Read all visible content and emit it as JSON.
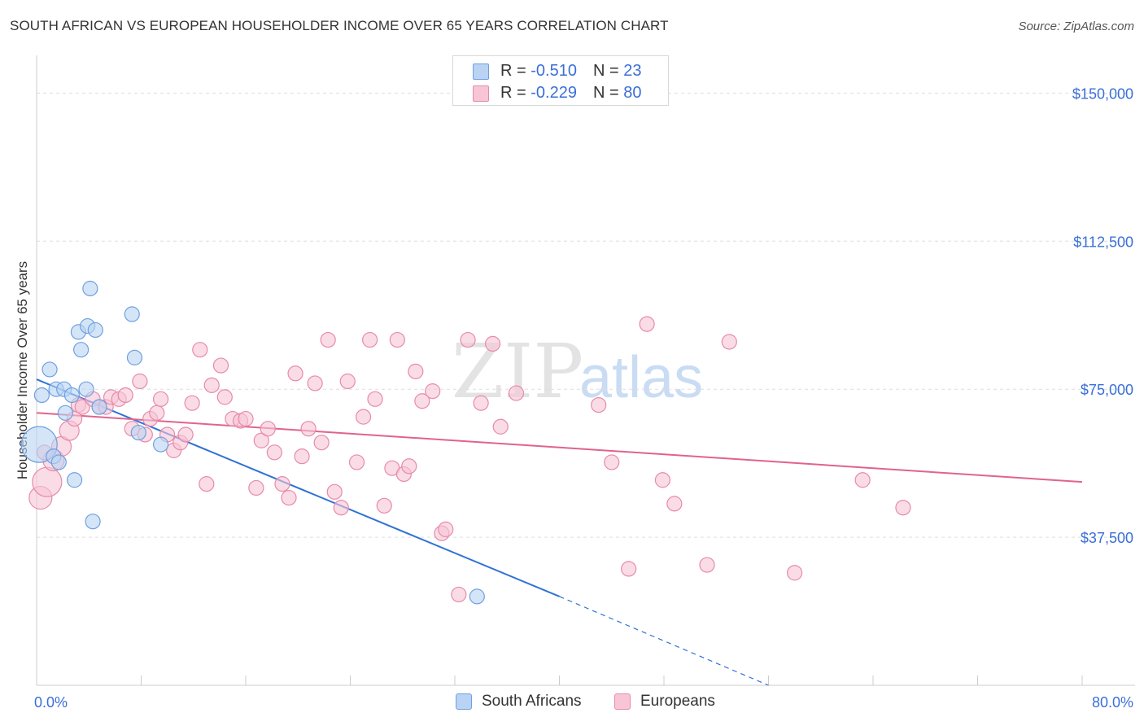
{
  "header": {
    "title": "SOUTH AFRICAN VS EUROPEAN HOUSEHOLDER INCOME OVER 65 YEARS CORRELATION CHART",
    "source": "Source: ZipAtlas.com"
  },
  "watermark": {
    "zip": "ZIP",
    "atlas": "atlas"
  },
  "colors": {
    "blue": "#6fa0e0",
    "blue_fill": "#b9d3f4",
    "blue_line": "#2f72d6",
    "pink": "#e88aa8",
    "pink_fill": "#f7c5d5",
    "pink_line": "#e0638e",
    "axis_text": "#3a6fd8",
    "grid": "#dddddd"
  },
  "legend_top": {
    "rows": [
      {
        "r_label": "R =",
        "r_value": "-0.510",
        "n_label": "N =",
        "n_value": "23",
        "series": "blue"
      },
      {
        "r_label": "R =",
        "r_value": "-0.229",
        "n_label": "N =",
        "n_value": "80",
        "series": "pink"
      }
    ]
  },
  "legend_bottom": {
    "items": [
      "South Africans",
      "Europeans"
    ]
  },
  "chart_data": {
    "type": "scatter",
    "title": "SOUTH AFRICAN VS EUROPEAN HOUSEHOLDER INCOME OVER 65 YEARS CORRELATION CHART",
    "xlabel": "",
    "ylabel": "Householder Income Over 65 years",
    "xlim": [
      0,
      80
    ],
    "ylim": [
      0,
      157500
    ],
    "x_tick_labels": [
      "0.0%",
      "80.0%"
    ],
    "y_ticks": [
      37500,
      75000,
      112500,
      150000
    ],
    "y_tick_labels": [
      "$37,500",
      "$75,000",
      "$112,500",
      "$150,000"
    ],
    "series": [
      {
        "name": "South Africans",
        "color": "blue",
        "points": [
          [
            0.2,
            61000,
            22
          ],
          [
            0.4,
            73500,
            9
          ],
          [
            1.0,
            80000,
            9
          ],
          [
            1.3,
            58000,
            9
          ],
          [
            1.5,
            75000,
            9
          ],
          [
            1.7,
            56500,
            9
          ],
          [
            2.1,
            75000,
            9
          ],
          [
            2.2,
            69000,
            9
          ],
          [
            2.7,
            73500,
            9
          ],
          [
            2.9,
            52000,
            9
          ],
          [
            3.2,
            89500,
            9
          ],
          [
            3.4,
            85000,
            9
          ],
          [
            3.8,
            75000,
            9
          ],
          [
            3.9,
            91000,
            9
          ],
          [
            4.1,
            100500,
            9
          ],
          [
            4.3,
            41500,
            9
          ],
          [
            4.5,
            90000,
            9
          ],
          [
            4.8,
            70500,
            9
          ],
          [
            7.3,
            94000,
            9
          ],
          [
            7.5,
            83000,
            9
          ],
          [
            7.8,
            64000,
            9
          ],
          [
            9.5,
            61000,
            9
          ],
          [
            33.7,
            22500,
            9
          ]
        ],
        "trend": {
          "x0": 0,
          "y0": 77500,
          "x1": 40,
          "y1": 22500,
          "dashed_to_x": 56,
          "dashed_to_y": 0
        }
      },
      {
        "name": "Europeans",
        "color": "pink",
        "points": [
          [
            0.3,
            47500,
            14
          ],
          [
            0.8,
            51500,
            18
          ],
          [
            1.3,
            57000,
            13
          ],
          [
            1.9,
            60500,
            12
          ],
          [
            2.5,
            64500,
            12
          ],
          [
            2.9,
            67500,
            9
          ],
          [
            3.2,
            71000,
            9
          ],
          [
            3.5,
            70500,
            9
          ],
          [
            4.3,
            72500,
            9
          ],
          [
            4.8,
            70500,
            9
          ],
          [
            5.3,
            70500,
            9
          ],
          [
            5.7,
            73000,
            9
          ],
          [
            6.3,
            72500,
            9
          ],
          [
            6.8,
            73500,
            9
          ],
          [
            7.3,
            65000,
            9
          ],
          [
            7.9,
            77000,
            9
          ],
          [
            8.3,
            63500,
            9
          ],
          [
            8.7,
            67500,
            9
          ],
          [
            9.2,
            69000,
            9
          ],
          [
            9.5,
            72500,
            9
          ],
          [
            10.0,
            63500,
            9
          ],
          [
            10.5,
            59500,
            9
          ],
          [
            11.0,
            61500,
            9
          ],
          [
            11.4,
            63500,
            9
          ],
          [
            11.9,
            71500,
            9
          ],
          [
            12.5,
            85000,
            9
          ],
          [
            13.0,
            51000,
            9
          ],
          [
            13.4,
            76000,
            9
          ],
          [
            14.1,
            81000,
            9
          ],
          [
            14.4,
            73000,
            9
          ],
          [
            15.0,
            67500,
            9
          ],
          [
            15.6,
            67000,
            9
          ],
          [
            16.0,
            67500,
            9
          ],
          [
            16.8,
            50000,
            9
          ],
          [
            17.2,
            62000,
            9
          ],
          [
            17.7,
            65000,
            9
          ],
          [
            18.2,
            59000,
            9
          ],
          [
            18.8,
            51000,
            9
          ],
          [
            19.3,
            47500,
            9
          ],
          [
            19.8,
            79000,
            9
          ],
          [
            20.3,
            58000,
            9
          ],
          [
            20.8,
            65000,
            9
          ],
          [
            21.3,
            76500,
            9
          ],
          [
            21.8,
            61500,
            9
          ],
          [
            22.3,
            87500,
            9
          ],
          [
            22.8,
            49000,
            9
          ],
          [
            23.3,
            45000,
            9
          ],
          [
            23.8,
            77000,
            9
          ],
          [
            24.5,
            56500,
            9
          ],
          [
            25.0,
            68000,
            9
          ],
          [
            25.5,
            87500,
            9
          ],
          [
            25.9,
            72500,
            9
          ],
          [
            26.6,
            45500,
            9
          ],
          [
            27.2,
            55000,
            9
          ],
          [
            27.6,
            87500,
            9
          ],
          [
            28.1,
            53500,
            9
          ],
          [
            28.5,
            55500,
            9
          ],
          [
            29.0,
            79500,
            9
          ],
          [
            29.5,
            72000,
            9
          ],
          [
            30.3,
            74500,
            9
          ],
          [
            31.0,
            38500,
            9
          ],
          [
            31.3,
            39500,
            9
          ],
          [
            32.3,
            23000,
            9
          ],
          [
            33.0,
            87500,
            9
          ],
          [
            34.0,
            71500,
            9
          ],
          [
            34.9,
            86500,
            9
          ],
          [
            35.5,
            65500,
            9
          ],
          [
            36.7,
            74000,
            9
          ],
          [
            43.0,
            71000,
            9
          ],
          [
            44.0,
            56500,
            9
          ],
          [
            45.3,
            29500,
            9
          ],
          [
            46.7,
            91500,
            9
          ],
          [
            47.9,
            52000,
            9
          ],
          [
            48.8,
            46000,
            9
          ],
          [
            51.3,
            30500,
            9
          ],
          [
            53.0,
            87000,
            9
          ],
          [
            58.0,
            28500,
            9
          ],
          [
            63.2,
            52000,
            9
          ],
          [
            66.3,
            45000,
            9
          ],
          [
            0.6,
            59000,
            9
          ]
        ],
        "trend": {
          "x0": 0,
          "y0": 69000,
          "x1": 80,
          "y1": 51500
        }
      }
    ]
  }
}
